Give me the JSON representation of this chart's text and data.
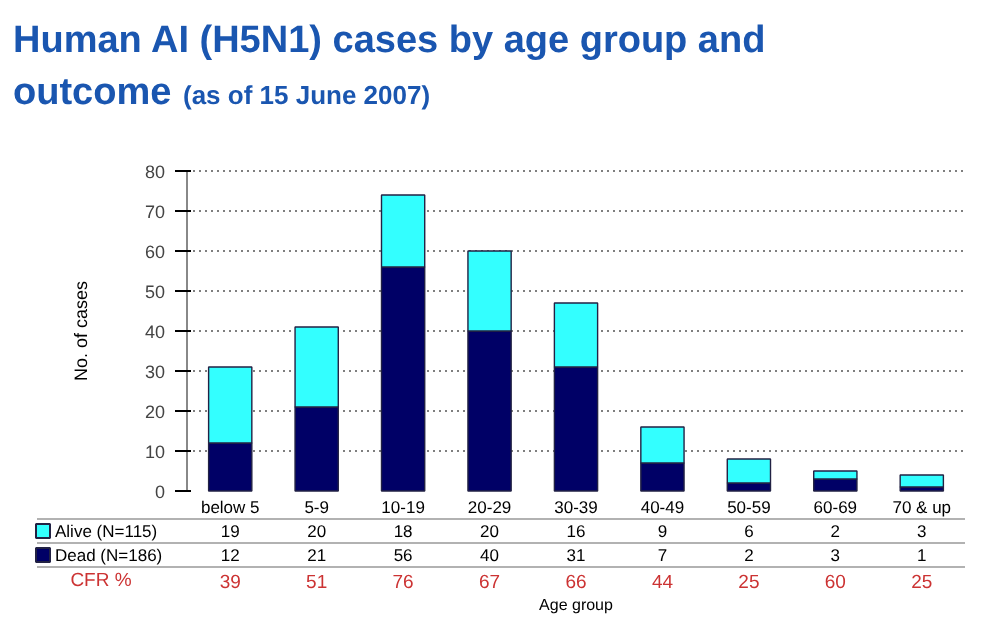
{
  "chart_data": {
    "type": "bar",
    "title": "Human AI (H5N1) cases by age group and outcome",
    "subtitle": "(as of 15 June 2007)",
    "xlabel": "Age group",
    "ylabel": "No. of cases",
    "categories": [
      "below 5",
      "5-9",
      "10-19",
      "20-29",
      "30-39",
      "40-49",
      "50-59",
      "60-69",
      "70 & up"
    ],
    "stacked": true,
    "series": [
      {
        "name": "Dead (N=186)",
        "color": "#000066",
        "values": [
          12,
          21,
          56,
          40,
          31,
          7,
          2,
          3,
          1
        ]
      },
      {
        "name": "Alive (N=115)",
        "color": "#33ffff",
        "values": [
          19,
          20,
          18,
          20,
          16,
          9,
          6,
          2,
          3
        ]
      }
    ],
    "ylim": [
      0,
      80
    ],
    "yticks": [
      0,
      10,
      20,
      30,
      40,
      50,
      60,
      70,
      80
    ],
    "grid": "y",
    "legend": "bottom",
    "data_labels": true,
    "annotations": [
      "CFR %",
      "39",
      "51",
      "76",
      "67",
      "66",
      "44",
      "25",
      "60",
      "25"
    ]
  }
}
